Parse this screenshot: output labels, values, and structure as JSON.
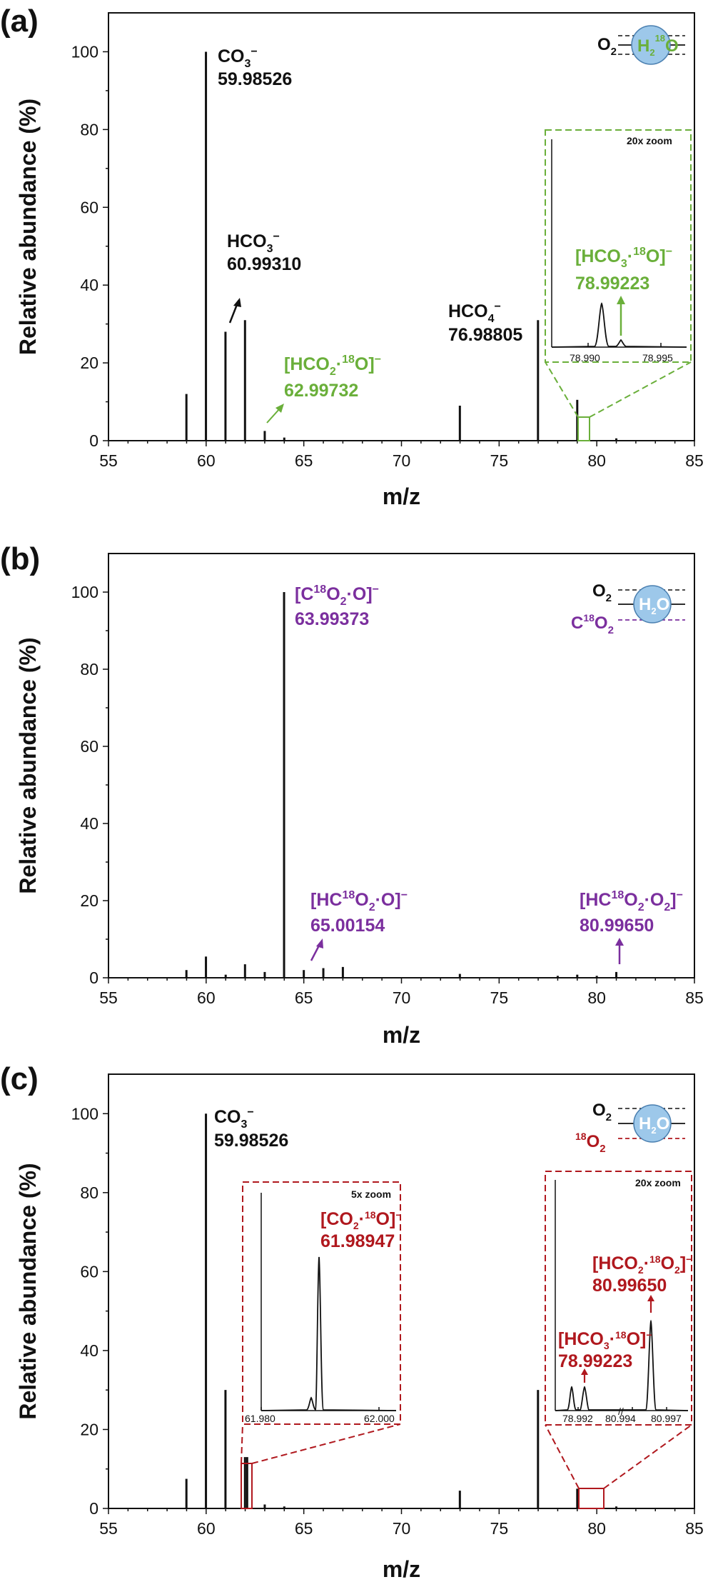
{
  "colors": {
    "axis": "#111111",
    "bar": "#111111",
    "green": "#6aaf3a",
    "purple": "#7b2f9e",
    "red": "#b0181e",
    "droplet_fill": "#9dc8ea",
    "droplet_stroke": "#4a7fb0"
  },
  "chart_data": [
    {
      "type": "bar",
      "panel": "(a)",
      "xlabel": "m/z",
      "ylabel": "Relative abundance (%)",
      "xlim": [
        55,
        85
      ],
      "ylim": [
        0,
        110
      ],
      "xticks": [
        55,
        60,
        65,
        70,
        75,
        80,
        85
      ],
      "yticks": [
        0,
        20,
        40,
        60,
        80,
        100
      ],
      "peaks": [
        {
          "mz": 58.99,
          "rel": 12
        },
        {
          "mz": 59.99,
          "rel": 100
        },
        {
          "mz": 60.99,
          "rel": 28
        },
        {
          "mz": 61.99,
          "rel": 31
        },
        {
          "mz": 63.0,
          "rel": 2.5
        },
        {
          "mz": 64.0,
          "rel": 0.8
        },
        {
          "mz": 72.99,
          "rel": 9
        },
        {
          "mz": 76.99,
          "rel": 31
        },
        {
          "mz": 79.0,
          "rel": 10.5
        },
        {
          "mz": 81.0,
          "rel": 0.6
        }
      ],
      "labels": [
        {
          "formula": "CO",
          "sub": "3",
          "sup": "−",
          "mass": "59.98526",
          "color": "black"
        },
        {
          "formula": "HCO",
          "sub": "3",
          "sup": "−",
          "mass": "60.99310",
          "color": "black"
        },
        {
          "formula": "HCO",
          "sub": "4",
          "sup": "−",
          "mass": "76.98805",
          "color": "black"
        },
        {
          "formula": "[HCO₂·¹⁸O]⁻",
          "mass": "62.99732",
          "color": "green"
        },
        {
          "formula": "[HCO₃·¹⁸O]⁻",
          "mass": "78.99223",
          "color": "green"
        }
      ],
      "inset": {
        "title": "20x zoom",
        "xticks": [
          "78.990",
          "78.995"
        ],
        "xrange": [
          78.988,
          78.997
        ]
      },
      "diagram": {
        "gas": "O₂",
        "droplet": "H₂¹⁸O"
      }
    },
    {
      "type": "bar",
      "panel": "(b)",
      "xlabel": "m/z",
      "ylabel": "Relative abundance (%)",
      "xlim": [
        55,
        85
      ],
      "ylim": [
        0,
        110
      ],
      "xticks": [
        55,
        60,
        65,
        70,
        75,
        80,
        85
      ],
      "yticks": [
        0,
        20,
        40,
        60,
        80,
        100
      ],
      "peaks": [
        {
          "mz": 58.99,
          "rel": 2
        },
        {
          "mz": 59.99,
          "rel": 5.5
        },
        {
          "mz": 61.0,
          "rel": 0.8
        },
        {
          "mz": 61.99,
          "rel": 3.5
        },
        {
          "mz": 63.0,
          "rel": 1.5
        },
        {
          "mz": 63.99,
          "rel": 100
        },
        {
          "mz": 65.0,
          "rel": 2
        },
        {
          "mz": 66.0,
          "rel": 2.5
        },
        {
          "mz": 67.0,
          "rel": 2.8
        },
        {
          "mz": 72.99,
          "rel": 1
        },
        {
          "mz": 78.0,
          "rel": 0.5
        },
        {
          "mz": 79.0,
          "rel": 0.8
        },
        {
          "mz": 80.0,
          "rel": 0.5
        },
        {
          "mz": 81.0,
          "rel": 1.5
        }
      ],
      "labels": [
        {
          "formula": "[C¹⁸O₂·O]⁻",
          "mass": "63.99373",
          "color": "purple"
        },
        {
          "formula": "[HC¹⁸O₂·O]⁻",
          "mass": "65.00154",
          "color": "purple"
        },
        {
          "formula": "[HC¹⁸O₂·O₂]⁻",
          "mass": "80.99650",
          "color": "purple"
        }
      ],
      "diagram": {
        "gas1": "O₂",
        "gas2": "C¹⁸O₂",
        "droplet": "H₂O"
      }
    },
    {
      "type": "bar",
      "panel": "(c)",
      "xlabel": "m/z",
      "ylabel": "Relative abundance (%)",
      "xlim": [
        55,
        85
      ],
      "ylim": [
        0,
        110
      ],
      "xticks": [
        55,
        60,
        65,
        70,
        75,
        80,
        85
      ],
      "yticks": [
        0,
        20,
        40,
        60,
        80,
        100
      ],
      "peaks": [
        {
          "mz": 58.99,
          "rel": 7.5
        },
        {
          "mz": 59.99,
          "rel": 100
        },
        {
          "mz": 60.99,
          "rel": 30
        },
        {
          "mz": 61.99,
          "rel": 13
        },
        {
          "mz": 62.1,
          "rel": 13
        },
        {
          "mz": 63.0,
          "rel": 1
        },
        {
          "mz": 64.0,
          "rel": 0.5
        },
        {
          "mz": 72.99,
          "rel": 4.5
        },
        {
          "mz": 76.99,
          "rel": 30
        },
        {
          "mz": 79.0,
          "rel": 5
        },
        {
          "mz": 81.0,
          "rel": 0.5
        }
      ],
      "labels": [
        {
          "formula": "CO",
          "sub": "3",
          "sup": "−",
          "mass": "59.98526",
          "color": "black"
        },
        {
          "formula": "[CO₂·¹⁸O]⁻",
          "mass": "61.98947",
          "color": "red"
        },
        {
          "formula": "[HCO₃·¹⁸O]⁻",
          "mass": "78.99223",
          "color": "red"
        },
        {
          "formula": "[HCO₂·¹⁸O₂]⁻",
          "mass": "80.99650",
          "color": "red"
        }
      ],
      "insets": [
        {
          "title": "5x zoom",
          "xticks": [
            "61.980",
            "62.000"
          ]
        },
        {
          "title": "20x zoom",
          "xticks": [
            "78.992",
            "80.994",
            "80.997"
          ]
        }
      ],
      "diagram": {
        "gas1": "O₂",
        "gas2": "¹⁸O₂",
        "droplet": "H₂O"
      }
    }
  ],
  "text": {
    "panel_a": "(a)",
    "panel_b": "(b)",
    "panel_c": "(c)",
    "xlabel": "m/z",
    "ylabel": "Relative abundance (%)",
    "a_co3_f": "CO",
    "a_co3_sub": "3",
    "a_co3_sup": "−",
    "a_co3_mass": "59.98526",
    "a_hco3_f": "HCO",
    "a_hco3_sub": "3",
    "a_hco3_sup": "−",
    "a_hco3_mass": "60.99310",
    "a_hco4_f": "HCO",
    "a_hco4_sub": "4",
    "a_hco4_sup": "−",
    "a_hco4_mass": "76.98805",
    "a_g1_pre": "[HCO",
    "a_g1_sub": "2",
    "a_g1_dot": "·",
    "a_g1_iso": "18",
    "a_g1_post": "O]",
    "a_g1_sup": "−",
    "a_g1_mass": "62.99732",
    "a_g2_pre": "[HCO",
    "a_g2_sub": "3",
    "a_g2_dot": "·",
    "a_g2_iso": "18",
    "a_g2_post": "O]",
    "a_g2_sup": "−",
    "a_g2_mass": "78.99223",
    "a_inset_title": "20x zoom",
    "a_inset_t1": "78.990",
    "a_inset_t2": "78.995",
    "a_diag_gas": "O",
    "a_diag_gas_sub": "2",
    "a_diag_drop_h": "H",
    "a_diag_drop_sub": "2",
    "a_diag_drop_iso": "18",
    "a_diag_drop_o": "O",
    "b_l1_pre": "[C",
    "b_l1_iso": "18",
    "b_l1_mid": "O",
    "b_l1_sub": "2",
    "b_l1_post": "·O]",
    "b_l1_sup": "−",
    "b_l1_mass": "63.99373",
    "b_l2_pre": "[HC",
    "b_l2_iso": "18",
    "b_l2_mid": "O",
    "b_l2_sub": "2",
    "b_l2_post": "·O]",
    "b_l2_sup": "−",
    "b_l2_mass": "65.00154",
    "b_l3_pre": "[HC",
    "b_l3_iso": "18",
    "b_l3_mid": "O",
    "b_l3_sub": "2",
    "b_l3_post": "·O",
    "b_l3_sub2": "2",
    "b_l3_end": "]",
    "b_l3_sup": "−",
    "b_l3_mass": "80.99650",
    "b_diag_gas1": "O",
    "b_diag_gas1_sub": "2",
    "b_diag_gas2_c": "C",
    "b_diag_gas2_iso": "18",
    "b_diag_gas2_o": "O",
    "b_diag_gas2_sub": "2",
    "b_diag_drop_h": "H",
    "b_diag_drop_sub": "2",
    "b_diag_drop_o": "O",
    "c_co3_f": "CO",
    "c_co3_sub": "3",
    "c_co3_sup": "−",
    "c_co3_mass": "59.98526",
    "c_i1_title": "5x zoom",
    "c_i1_t1": "61.980",
    "c_i1_t2": "62.000",
    "c_r1_pre": "[CO",
    "c_r1_sub": "2",
    "c_r1_dot": "·",
    "c_r1_iso": "18",
    "c_r1_post": "O]",
    "c_r1_sup": "−",
    "c_r1_mass": "61.98947",
    "c_i2_title": "20x zoom",
    "c_i2_t1": "78.992",
    "c_i2_t2": "80.994",
    "c_i2_t3": "80.997",
    "c_r2_pre": "[HCO",
    "c_r2_sub": "3",
    "c_r2_dot": "·",
    "c_r2_iso": "18",
    "c_r2_post": "O]",
    "c_r2_sup": "−",
    "c_r2_mass": "78.99223",
    "c_r3_pre": "[HCO",
    "c_r3_sub": "2",
    "c_r3_dot": "·",
    "c_r3_iso": "18",
    "c_r3_post": "O",
    "c_r3_sub2": "2",
    "c_r3_end": "]",
    "c_r3_sup": "−",
    "c_r3_mass": "80.99650",
    "c_diag_gas1": "O",
    "c_diag_gas1_sub": "2",
    "c_diag_gas2_iso": "18",
    "c_diag_gas2_o": "O",
    "c_diag_gas2_sub": "2",
    "c_diag_drop_h": "H",
    "c_diag_drop_sub": "2",
    "c_diag_drop_o": "O"
  }
}
